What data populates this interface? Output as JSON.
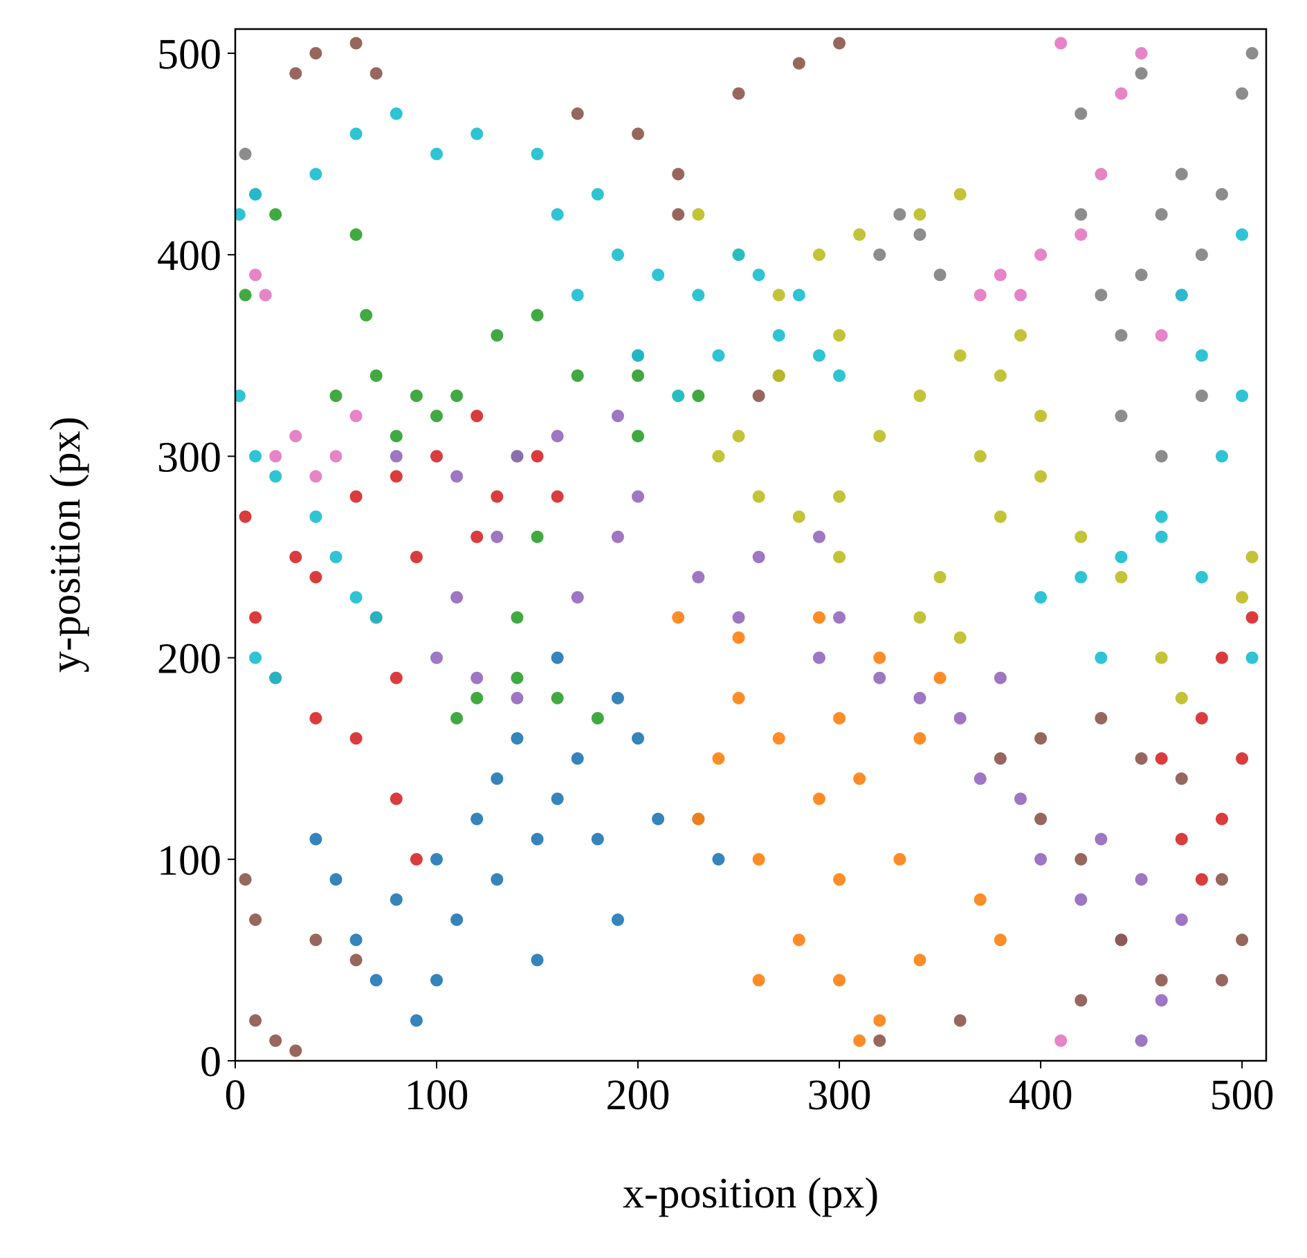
{
  "chart_data": {
    "type": "scatter",
    "x_label": "x-position (px)",
    "y_label": "y-position (px)",
    "xlim": [
      0,
      512
    ],
    "ylim": [
      0,
      512
    ],
    "xticks": [
      0,
      100,
      200,
      300,
      400,
      500
    ],
    "yticks": [
      0,
      100,
      200,
      300,
      400,
      500
    ],
    "grid": false,
    "series": [
      {
        "color": "#1f77b4",
        "x": [
          90,
          70,
          100,
          60,
          50,
          40,
          80,
          110,
          130,
          150,
          120,
          160,
          140,
          170,
          190,
          160,
          200,
          210,
          190,
          150,
          100,
          130,
          180,
          230,
          240
        ],
        "y": [
          20,
          40,
          40,
          60,
          90,
          110,
          80,
          70,
          90,
          110,
          120,
          130,
          160,
          150,
          180,
          200,
          160,
          120,
          70,
          50,
          100,
          140,
          110,
          120,
          100
        ]
      },
      {
        "color": "#ff7f0e",
        "x": [
          220,
          250,
          290,
          320,
          350,
          300,
          270,
          240,
          230,
          260,
          290,
          310,
          340,
          280,
          300,
          320,
          340,
          260,
          370,
          380,
          330,
          300,
          250,
          310
        ],
        "y": [
          220,
          210,
          220,
          200,
          190,
          170,
          160,
          150,
          120,
          100,
          130,
          140,
          160,
          60,
          40,
          20,
          50,
          40,
          80,
          60,
          100,
          90,
          180,
          10
        ]
      },
      {
        "color": "#2ca02c",
        "x": [
          5,
          20,
          60,
          65,
          70,
          80,
          90,
          110,
          130,
          150,
          170,
          200,
          230,
          140,
          150,
          140,
          140,
          120,
          110,
          160,
          180,
          100,
          50,
          200
        ],
        "y": [
          380,
          420,
          410,
          370,
          340,
          310,
          330,
          330,
          360,
          370,
          340,
          340,
          330,
          300,
          260,
          220,
          190,
          180,
          170,
          180,
          170,
          320,
          330,
          310
        ]
      },
      {
        "color": "#d62728",
        "x": [
          5,
          10,
          20,
          40,
          60,
          80,
          70,
          40,
          60,
          80,
          100,
          120,
          150,
          160,
          120,
          90,
          80,
          90,
          460,
          480,
          500,
          490,
          480,
          490,
          505,
          470,
          130,
          30
        ],
        "y": [
          270,
          220,
          190,
          170,
          160,
          190,
          220,
          240,
          280,
          290,
          300,
          320,
          300,
          280,
          260,
          250,
          130,
          100,
          150,
          170,
          150,
          120,
          90,
          200,
          220,
          110,
          280,
          250
        ]
      },
      {
        "color": "#9467bd",
        "x": [
          80,
          110,
          140,
          160,
          190,
          130,
          110,
          100,
          120,
          140,
          170,
          190,
          200,
          230,
          260,
          290,
          300,
          290,
          320,
          340,
          360,
          370,
          390,
          400,
          420,
          440,
          450,
          430,
          450,
          460,
          470,
          250,
          380
        ],
        "y": [
          300,
          290,
          300,
          310,
          320,
          260,
          230,
          200,
          190,
          180,
          230,
          260,
          280,
          240,
          250,
          260,
          220,
          200,
          190,
          180,
          170,
          140,
          130,
          100,
          80,
          60,
          90,
          110,
          10,
          30,
          70,
          220,
          190
        ]
      },
      {
        "color": "#8c564b",
        "x": [
          30,
          40,
          60,
          70,
          170,
          200,
          220,
          220,
          250,
          280,
          300,
          10,
          20,
          30,
          5,
          10,
          40,
          60,
          380,
          400,
          430,
          450,
          470,
          400,
          420,
          440,
          460,
          490,
          500,
          420,
          360,
          320,
          260,
          270,
          200,
          490
        ],
        "y": [
          490,
          500,
          505,
          490,
          470,
          460,
          420,
          440,
          480,
          495,
          505,
          20,
          10,
          5,
          90,
          70,
          60,
          50,
          150,
          160,
          170,
          150,
          140,
          120,
          100,
          60,
          40,
          40,
          60,
          30,
          20,
          10,
          330,
          340,
          350,
          90
        ]
      },
      {
        "color": "#e377c2",
        "x": [
          20,
          30,
          40,
          50,
          60,
          10,
          15,
          370,
          380,
          390,
          400,
          420,
          430,
          440,
          450,
          410,
          460,
          470,
          410
        ],
        "y": [
          300,
          310,
          290,
          300,
          320,
          390,
          380,
          380,
          390,
          380,
          400,
          410,
          440,
          480,
          500,
          505,
          360,
          380,
          10
        ]
      },
      {
        "color": "#7f7f7f",
        "x": [
          5,
          10,
          320,
          330,
          340,
          350,
          420,
          430,
          440,
          450,
          460,
          470,
          480,
          490,
          500,
          505,
          440,
          460,
          480,
          420,
          450
        ],
        "y": [
          450,
          430,
          400,
          420,
          410,
          390,
          420,
          380,
          360,
          390,
          420,
          440,
          400,
          430,
          480,
          500,
          320,
          300,
          330,
          470,
          490
        ]
      },
      {
        "color": "#bcbd22",
        "x": [
          230,
          250,
          270,
          290,
          310,
          340,
          360,
          300,
          270,
          250,
          240,
          260,
          280,
          300,
          320,
          340,
          360,
          380,
          400,
          370,
          380,
          400,
          420,
          350,
          340,
          360,
          440,
          460,
          470,
          500,
          505,
          390,
          220,
          300
        ],
        "y": [
          420,
          400,
          380,
          400,
          410,
          420,
          430,
          360,
          340,
          310,
          300,
          280,
          270,
          280,
          310,
          330,
          350,
          340,
          320,
          300,
          270,
          290,
          260,
          240,
          220,
          210,
          240,
          200,
          180,
          230,
          250,
          360,
          330,
          250
        ]
      },
      {
        "color": "#17becf",
        "x": [
          2,
          10,
          40,
          60,
          80,
          100,
          120,
          150,
          160,
          180,
          190,
          210,
          230,
          250,
          260,
          280,
          270,
          290,
          300,
          240,
          220,
          200,
          170,
          2,
          10,
          20,
          40,
          50,
          60,
          70,
          10,
          20,
          420,
          440,
          460,
          480,
          490,
          500,
          480,
          470,
          500,
          430,
          400,
          505,
          460
        ],
        "y": [
          420,
          430,
          440,
          460,
          470,
          450,
          460,
          450,
          420,
          430,
          400,
          390,
          380,
          400,
          390,
          380,
          360,
          350,
          340,
          350,
          330,
          350,
          380,
          330,
          300,
          290,
          270,
          250,
          230,
          220,
          200,
          190,
          240,
          250,
          260,
          240,
          300,
          330,
          350,
          380,
          410,
          200,
          230,
          200,
          270
        ]
      }
    ]
  }
}
